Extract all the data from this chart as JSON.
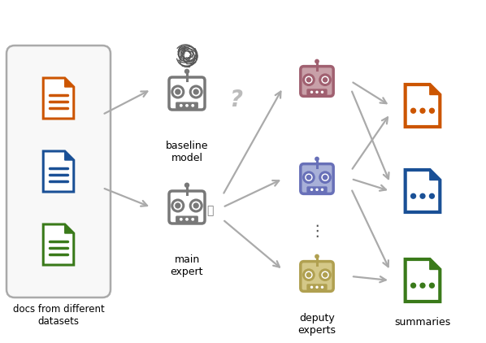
{
  "bg_color": "#ffffff",
  "doc_colors": [
    "#cc5500",
    "#1a5096",
    "#3a7a1a"
  ],
  "robot_gray_color": "#787878",
  "robot_gray_fill": "#787878",
  "robot_deputy1_color": "#a06070",
  "robot_deputy1_fill": "#c8a0a8",
  "robot_deputy2_color": "#6870b8",
  "robot_deputy2_fill": "#a8b0d8",
  "robot_deputy3_color": "#b0a050",
  "robot_deputy3_fill": "#d4c888",
  "summary_colors": [
    "#cc5500",
    "#1a5096",
    "#3a7a1a"
  ],
  "arrow_color": "#aaaaaa",
  "labels": {
    "docs": "docs from different\ndatasets",
    "baseline": "baseline\nmodel",
    "main": "main\nexpert",
    "deputy": "deputy\nexperts",
    "summaries": "summaries"
  },
  "figsize": [
    5.98,
    4.22
  ],
  "dpi": 100
}
